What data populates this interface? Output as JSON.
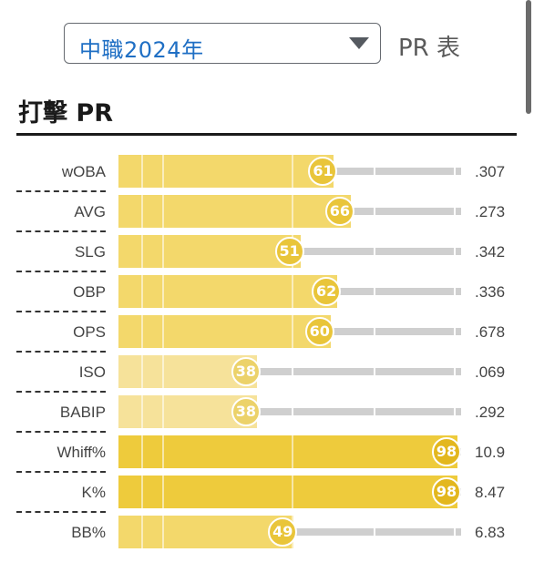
{
  "header": {
    "season_select": {
      "value": "中職2024年"
    },
    "table_label": "PR 表"
  },
  "section": {
    "title": "打擊 PR"
  },
  "colors": {
    "bar_light": "#f6e29a",
    "bar_mid": "#f3d86b",
    "bar_strong": "#eecb3c",
    "badge_light": "#ecd26a",
    "badge_mid": "#e9c53a",
    "badge_strong": "#e3b71e",
    "track": "#cfcfcf",
    "select_text": "#1f6fc4"
  },
  "chart_data": {
    "type": "bar",
    "categories": [
      "wOBA",
      "AVG",
      "SLG",
      "OBP",
      "OPS",
      "ISO",
      "BABIP",
      "Whiff%",
      "K%",
      "BB%"
    ],
    "pr_values": [
      61,
      66,
      51,
      62,
      60,
      38,
      38,
      98,
      98,
      49
    ],
    "stat_values": [
      ".307",
      ".273",
      ".342",
      ".336",
      ".678",
      ".069",
      ".292",
      "10.9",
      "8.47",
      "6.83"
    ],
    "xlim": [
      0,
      100
    ]
  },
  "rows": [
    {
      "label": "wOBA",
      "pr": "61",
      "value": ".307"
    },
    {
      "label": "AVG",
      "pr": "66",
      "value": ".273"
    },
    {
      "label": "SLG",
      "pr": "51",
      "value": ".342"
    },
    {
      "label": "OBP",
      "pr": "62",
      "value": ".336"
    },
    {
      "label": "OPS",
      "pr": "60",
      "value": ".678"
    },
    {
      "label": "ISO",
      "pr": "38",
      "value": ".069"
    },
    {
      "label": "BABIP",
      "pr": "38",
      "value": ".292"
    },
    {
      "label": "Whiff%",
      "pr": "98",
      "value": "10.9"
    },
    {
      "label": "K%",
      "pr": "98",
      "value": "8.47"
    },
    {
      "label": "BB%",
      "pr": "49",
      "value": "6.83"
    }
  ]
}
